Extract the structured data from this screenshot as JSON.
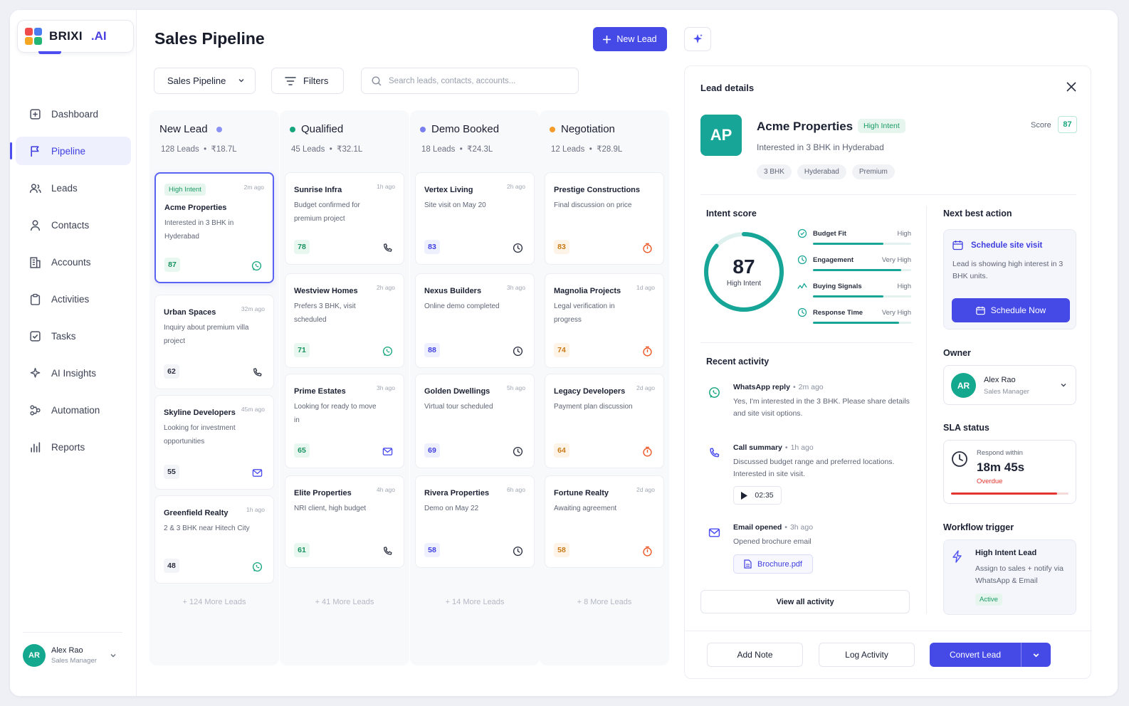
{
  "brand": {
    "name": "BRIXI",
    "suffix": ".AI"
  },
  "nav": [
    {
      "label": "Dashboard",
      "icon": "dashboard-icon"
    },
    {
      "label": "Pipeline",
      "icon": "flag-icon",
      "active": true
    },
    {
      "label": "Leads",
      "icon": "users-icon"
    },
    {
      "label": "Contacts",
      "icon": "user-icon"
    },
    {
      "label": "Accounts",
      "icon": "building-icon"
    },
    {
      "label": "Activities",
      "icon": "clipboard-icon"
    },
    {
      "label": "Tasks",
      "icon": "checkbox-icon"
    },
    {
      "label": "AI Insights",
      "icon": "sparkle-icon"
    },
    {
      "label": "Automation",
      "icon": "automation-icon"
    },
    {
      "label": "Reports",
      "icon": "bar-chart-icon"
    }
  ],
  "user": {
    "initials": "AR",
    "name": "Alex Rao",
    "role": "Sales Manager"
  },
  "header": {
    "title": "Sales Pipeline",
    "new_lead": "New Lead"
  },
  "toolbar": {
    "pipeline_select": "Sales Pipeline",
    "filters": "Filters",
    "search_placeholder": "Search leads, contacts, accounts..."
  },
  "columns": [
    {
      "title": "New Lead",
      "dot": "#8b92f5",
      "count": "128 Leads",
      "value": "₹18.7L",
      "more": "+ 124 More Leads",
      "cards": [
        {
          "tag": "High Intent",
          "time": "2m ago",
          "name": "Acme Properties",
          "desc": "Interested in 3 BHK in Hyderabad",
          "score": "87",
          "icon": "whatsapp-icon",
          "selected": true
        },
        {
          "time": "32m ago",
          "name": "Urban Spaces",
          "desc": "Inquiry about premium villa project",
          "score": "62",
          "icon": "phone-icon"
        },
        {
          "time": "45m ago",
          "name": "Skyline Developers",
          "desc": "Looking for investment opportunities",
          "score": "55",
          "icon": "mail-icon"
        },
        {
          "time": "1h ago",
          "name": "Greenfield Realty",
          "desc": "2 & 3 BHK near Hitech City",
          "score": "48",
          "icon": "whatsapp-icon"
        }
      ]
    },
    {
      "title": "Qualified",
      "dot": "#16a57d",
      "count": "45 Leads",
      "value": "₹32.1L",
      "more": "+ 41 More Leads",
      "cards": [
        {
          "time": "1h ago",
          "name": "Sunrise Infra",
          "desc": "Budget confirmed for premium project",
          "score": "78",
          "icon": "phone-icon"
        },
        {
          "time": "2h ago",
          "name": "Westview Homes",
          "desc": "Prefers 3 BHK, visit scheduled",
          "score": "71",
          "icon": "whatsapp-icon"
        },
        {
          "time": "3h ago",
          "name": "Prime Estates",
          "desc": "Looking for ready to move in",
          "score": "65",
          "icon": "mail-icon"
        },
        {
          "time": "4h ago",
          "name": "Elite Properties",
          "desc": "NRI client, high budget",
          "score": "61",
          "icon": "phone-icon"
        }
      ]
    },
    {
      "title": "Demo Booked",
      "dot": "#7a7ff0",
      "count": "18 Leads",
      "value": "₹24.3L",
      "more": "+ 14 More Leads",
      "cards": [
        {
          "time": "2h ago",
          "name": "Vertex Living",
          "desc": "Site visit on May 20",
          "score": "83",
          "icon": "clock-icon"
        },
        {
          "time": "3h ago",
          "name": "Nexus Builders",
          "desc": "Online demo completed",
          "score": "88",
          "icon": "clock-icon"
        },
        {
          "time": "5h ago",
          "name": "Golden Dwellings",
          "desc": "Virtual tour scheduled",
          "score": "69",
          "icon": "clock-icon"
        },
        {
          "time": "6h ago",
          "name": "Rivera Properties",
          "desc": "Demo on May 22",
          "score": "58",
          "icon": "clock-icon"
        }
      ]
    },
    {
      "title": "Negotiation",
      "dot": "#f39a2a",
      "count": "12 Leads",
      "value": "₹28.9L",
      "more": "+ 8 More Leads",
      "cards": [
        {
          "time": "",
          "name": "Prestige Constructions",
          "desc": "Final discussion on price",
          "score": "83",
          "icon": "timer-icon"
        },
        {
          "time": "1d ago",
          "name": "Magnolia Projects",
          "desc": "Legal verification in progress",
          "score": "74",
          "icon": "timer-icon"
        },
        {
          "time": "2d ago",
          "name": "Legacy Developers",
          "desc": "Payment plan discussion",
          "score": "64",
          "icon": "timer-icon"
        },
        {
          "time": "2d ago",
          "name": "Fortune Realty",
          "desc": "Awaiting agreement",
          "score": "58",
          "icon": "timer-icon"
        }
      ]
    }
  ],
  "details": {
    "title": "Lead details",
    "initials": "AP",
    "name": "Acme Properties",
    "badge": "High Intent",
    "score_label": "Score",
    "score": "87",
    "interest": "Interested in 3 BHK in Hyderabad",
    "chips": [
      "3 BHK",
      "Hyderabad",
      "Premium"
    ],
    "intent": {
      "title": "Intent score",
      "value": "87",
      "label": "High Intent",
      "percent": 87,
      "metrics": [
        {
          "label": "Budget Fit",
          "value": "High",
          "fill": 0.72,
          "icon": "budget-icon"
        },
        {
          "label": "Engagement",
          "value": "Very High",
          "fill": 0.9,
          "icon": "clock-icon"
        },
        {
          "label": "Buying Signals",
          "value": "High",
          "fill": 0.72,
          "icon": "signal-icon"
        },
        {
          "label": "Response Time",
          "value": "Very High",
          "fill": 0.88,
          "icon": "clock-icon"
        }
      ]
    },
    "activity": {
      "title": "Recent activity",
      "items": [
        {
          "title": "WhatsApp reply",
          "time": "2m ago",
          "text": "Yes, I'm interested in the 3 BHK. Please share details and site visit options.",
          "icon": "whatsapp-icon"
        },
        {
          "title": "Call summary",
          "time": "1h ago",
          "text": "Discussed budget range and preferred locations. Interested in site visit.",
          "icon": "phone-icon"
        },
        {
          "title": "Email opened",
          "time": "3h ago",
          "text": "Opened brochure email",
          "icon": "mail-icon"
        }
      ],
      "audio": "02:35",
      "attachment": "Brochure.pdf",
      "view_all": "View all activity"
    },
    "nba": {
      "title": "Next best action",
      "action": "Schedule site visit",
      "text": "Lead is showing high interest in 3 BHK units.",
      "button": "Schedule Now"
    },
    "owner": {
      "title": "Owner",
      "initials": "AR",
      "name": "Alex Rao",
      "role": "Sales Manager"
    },
    "sla": {
      "title": "SLA status",
      "label": "Respond within",
      "time": "18m 45s",
      "status": "Overdue",
      "progress": 0.9
    },
    "workflow": {
      "title": "Workflow trigger",
      "name": "High Intent Lead",
      "text": "Assign to sales + notify via WhatsApp & Email",
      "status": "Active"
    },
    "actions": {
      "add_note": "Add Note",
      "log_activity": "Log Activity",
      "convert": "Convert Lead"
    }
  }
}
